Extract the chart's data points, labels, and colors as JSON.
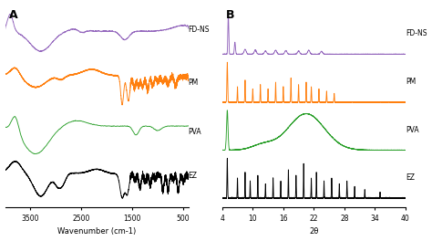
{
  "panel_A": {
    "title": "A",
    "xlabel": "Wavenumber (cm-1)",
    "xlim": [
      4000,
      400
    ],
    "xticks": [
      3500,
      2500,
      1500,
      500
    ],
    "colors": {
      "EZ": "#000000",
      "PVA": "#2ca02c",
      "PM": "#ff7f0e",
      "FD-NS": "#9467bd"
    },
    "labels": [
      "EZ",
      "PVA",
      "PM",
      "FD-NS"
    ],
    "offsets": [
      0,
      0.5,
      1.05,
      1.65
    ]
  },
  "panel_B": {
    "title": "B",
    "xlabel": "2θ",
    "xlim": [
      4,
      40
    ],
    "xticks": [
      4,
      10,
      16,
      22,
      28,
      34,
      40
    ],
    "colors": {
      "EZ": "#000000",
      "PVA": "#2ca02c",
      "PM": "#ff7f0e",
      "FD-NS": "#9467bd"
    },
    "labels": [
      "EZ",
      "PVA",
      "PM",
      "FD-NS"
    ],
    "offsets": [
      0,
      0.42,
      0.84,
      1.26
    ]
  }
}
